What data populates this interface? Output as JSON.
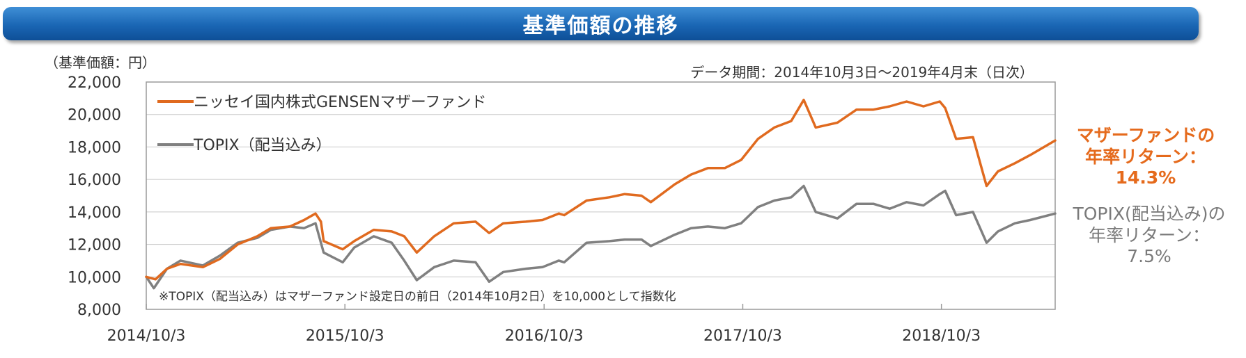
{
  "banner": {
    "title": "基準価額の推移"
  },
  "y_unit_label": "（基準価額：円）",
  "data_period": "データ期間：2014年10月3日～2019年4月末（日次）",
  "footnote": "※TOPIX（配当込み）はマザーファンド設定日の前日（2014年10月2日）を10,000として指数化",
  "returns": {
    "mother": {
      "line1": "マザーファンドの",
      "line2": "年率リターン：",
      "value": "14.3%"
    },
    "topix": {
      "line1": "TOPIX(配当込み)の",
      "line2": "年率リターン：",
      "value": "7.5%"
    }
  },
  "colors": {
    "mother": "#e06a1f",
    "topix": "#808080",
    "banner": "#1a66b4"
  },
  "chart_data": {
    "type": "line",
    "ylim": [
      8000,
      22000
    ],
    "yticks": [
      8000,
      10000,
      12000,
      14000,
      16000,
      18000,
      20000,
      22000
    ],
    "ytick_labels": [
      "8,000",
      "10,000",
      "12,000",
      "14,000",
      "16,000",
      "18,000",
      "20,000",
      "22,000"
    ],
    "xlim": [
      "2014-10-03",
      "2019-04-30"
    ],
    "xticks": [
      "2014-10-03",
      "2015-10-03",
      "2016-10-03",
      "2017-10-03",
      "2018-10-03"
    ],
    "xtick_labels": [
      "2014/10/3",
      "2015/10/3",
      "2016/10/3",
      "2017/10/3",
      "2018/10/3"
    ],
    "grid": "horizontal",
    "legend": "top-left",
    "series": [
      {
        "name": "ニッセイ国内株式GENSENマザーファンド",
        "color": "#e06a1f",
        "points": [
          [
            "2014-10-03",
            10000
          ],
          [
            "2014-10-20",
            9850
          ],
          [
            "2014-11-10",
            10500
          ],
          [
            "2014-12-05",
            10800
          ],
          [
            "2015-01-15",
            10600
          ],
          [
            "2015-02-15",
            11100
          ],
          [
            "2015-03-20",
            12000
          ],
          [
            "2015-04-25",
            12500
          ],
          [
            "2015-05-20",
            13000
          ],
          [
            "2015-06-24",
            13100
          ],
          [
            "2015-07-20",
            13500
          ],
          [
            "2015-08-10",
            13900
          ],
          [
            "2015-08-20",
            13400
          ],
          [
            "2015-08-25",
            12200
          ],
          [
            "2015-09-29",
            11700
          ],
          [
            "2015-10-20",
            12200
          ],
          [
            "2015-11-25",
            12900
          ],
          [
            "2015-12-28",
            12800
          ],
          [
            "2016-01-20",
            12500
          ],
          [
            "2016-02-12",
            11500
          ],
          [
            "2016-03-15",
            12500
          ],
          [
            "2016-04-20",
            13300
          ],
          [
            "2016-05-30",
            13400
          ],
          [
            "2016-06-24",
            12700
          ],
          [
            "2016-07-20",
            13300
          ],
          [
            "2016-08-30",
            13400
          ],
          [
            "2016-09-30",
            13500
          ],
          [
            "2016-10-30",
            13900
          ],
          [
            "2016-11-09",
            13800
          ],
          [
            "2016-12-20",
            14700
          ],
          [
            "2017-01-31",
            14900
          ],
          [
            "2017-02-28",
            15100
          ],
          [
            "2017-03-31",
            15000
          ],
          [
            "2017-04-17",
            14600
          ],
          [
            "2017-05-31",
            15700
          ],
          [
            "2017-06-30",
            16300
          ],
          [
            "2017-07-31",
            16700
          ],
          [
            "2017-08-31",
            16700
          ],
          [
            "2017-09-30",
            17200
          ],
          [
            "2017-10-31",
            18500
          ],
          [
            "2017-11-30",
            19200
          ],
          [
            "2017-12-31",
            19600
          ],
          [
            "2018-01-23",
            20900
          ],
          [
            "2018-02-14",
            19200
          ],
          [
            "2018-03-26",
            19500
          ],
          [
            "2018-04-30",
            20300
          ],
          [
            "2018-05-31",
            20300
          ],
          [
            "2018-06-30",
            20500
          ],
          [
            "2018-07-31",
            20800
          ],
          [
            "2018-08-31",
            20500
          ],
          [
            "2018-09-30",
            20800
          ],
          [
            "2018-10-10",
            20400
          ],
          [
            "2018-10-30",
            18500
          ],
          [
            "2018-11-30",
            18600
          ],
          [
            "2018-12-25",
            15600
          ],
          [
            "2019-01-15",
            16500
          ],
          [
            "2019-02-15",
            17000
          ],
          [
            "2019-03-15",
            17500
          ],
          [
            "2019-04-30",
            18400
          ]
        ]
      },
      {
        "name": "TOPIX（配当込み）",
        "color": "#808080",
        "points": [
          [
            "2014-10-03",
            10000
          ],
          [
            "2014-10-17",
            9300
          ],
          [
            "2014-11-10",
            10500
          ],
          [
            "2014-12-05",
            11000
          ],
          [
            "2015-01-15",
            10700
          ],
          [
            "2015-02-15",
            11300
          ],
          [
            "2015-03-20",
            12100
          ],
          [
            "2015-04-25",
            12400
          ],
          [
            "2015-05-20",
            12900
          ],
          [
            "2015-06-24",
            13100
          ],
          [
            "2015-07-20",
            13000
          ],
          [
            "2015-08-10",
            13300
          ],
          [
            "2015-08-25",
            11500
          ],
          [
            "2015-09-29",
            10900
          ],
          [
            "2015-10-20",
            11800
          ],
          [
            "2015-11-25",
            12500
          ],
          [
            "2015-12-28",
            12100
          ],
          [
            "2016-01-20",
            11000
          ],
          [
            "2016-02-12",
            9800
          ],
          [
            "2016-03-15",
            10600
          ],
          [
            "2016-04-20",
            11000
          ],
          [
            "2016-05-30",
            10900
          ],
          [
            "2016-06-24",
            9700
          ],
          [
            "2016-07-20",
            10300
          ],
          [
            "2016-08-30",
            10500
          ],
          [
            "2016-09-30",
            10600
          ],
          [
            "2016-10-30",
            11000
          ],
          [
            "2016-11-09",
            10900
          ],
          [
            "2016-12-20",
            12100
          ],
          [
            "2017-01-31",
            12200
          ],
          [
            "2017-02-28",
            12300
          ],
          [
            "2017-03-31",
            12300
          ],
          [
            "2017-04-17",
            11900
          ],
          [
            "2017-05-31",
            12600
          ],
          [
            "2017-06-30",
            13000
          ],
          [
            "2017-07-31",
            13100
          ],
          [
            "2017-08-31",
            13000
          ],
          [
            "2017-09-30",
            13300
          ],
          [
            "2017-10-31",
            14300
          ],
          [
            "2017-11-30",
            14700
          ],
          [
            "2017-12-31",
            14900
          ],
          [
            "2018-01-23",
            15600
          ],
          [
            "2018-02-14",
            14000
          ],
          [
            "2018-03-26",
            13600
          ],
          [
            "2018-04-30",
            14500
          ],
          [
            "2018-05-31",
            14500
          ],
          [
            "2018-06-30",
            14200
          ],
          [
            "2018-07-31",
            14600
          ],
          [
            "2018-08-31",
            14400
          ],
          [
            "2018-09-30",
            15100
          ],
          [
            "2018-10-10",
            15300
          ],
          [
            "2018-10-30",
            13800
          ],
          [
            "2018-11-30",
            14000
          ],
          [
            "2018-12-25",
            12100
          ],
          [
            "2019-01-15",
            12800
          ],
          [
            "2019-02-15",
            13300
          ],
          [
            "2019-03-15",
            13500
          ],
          [
            "2019-04-30",
            13900
          ]
        ]
      }
    ]
  }
}
